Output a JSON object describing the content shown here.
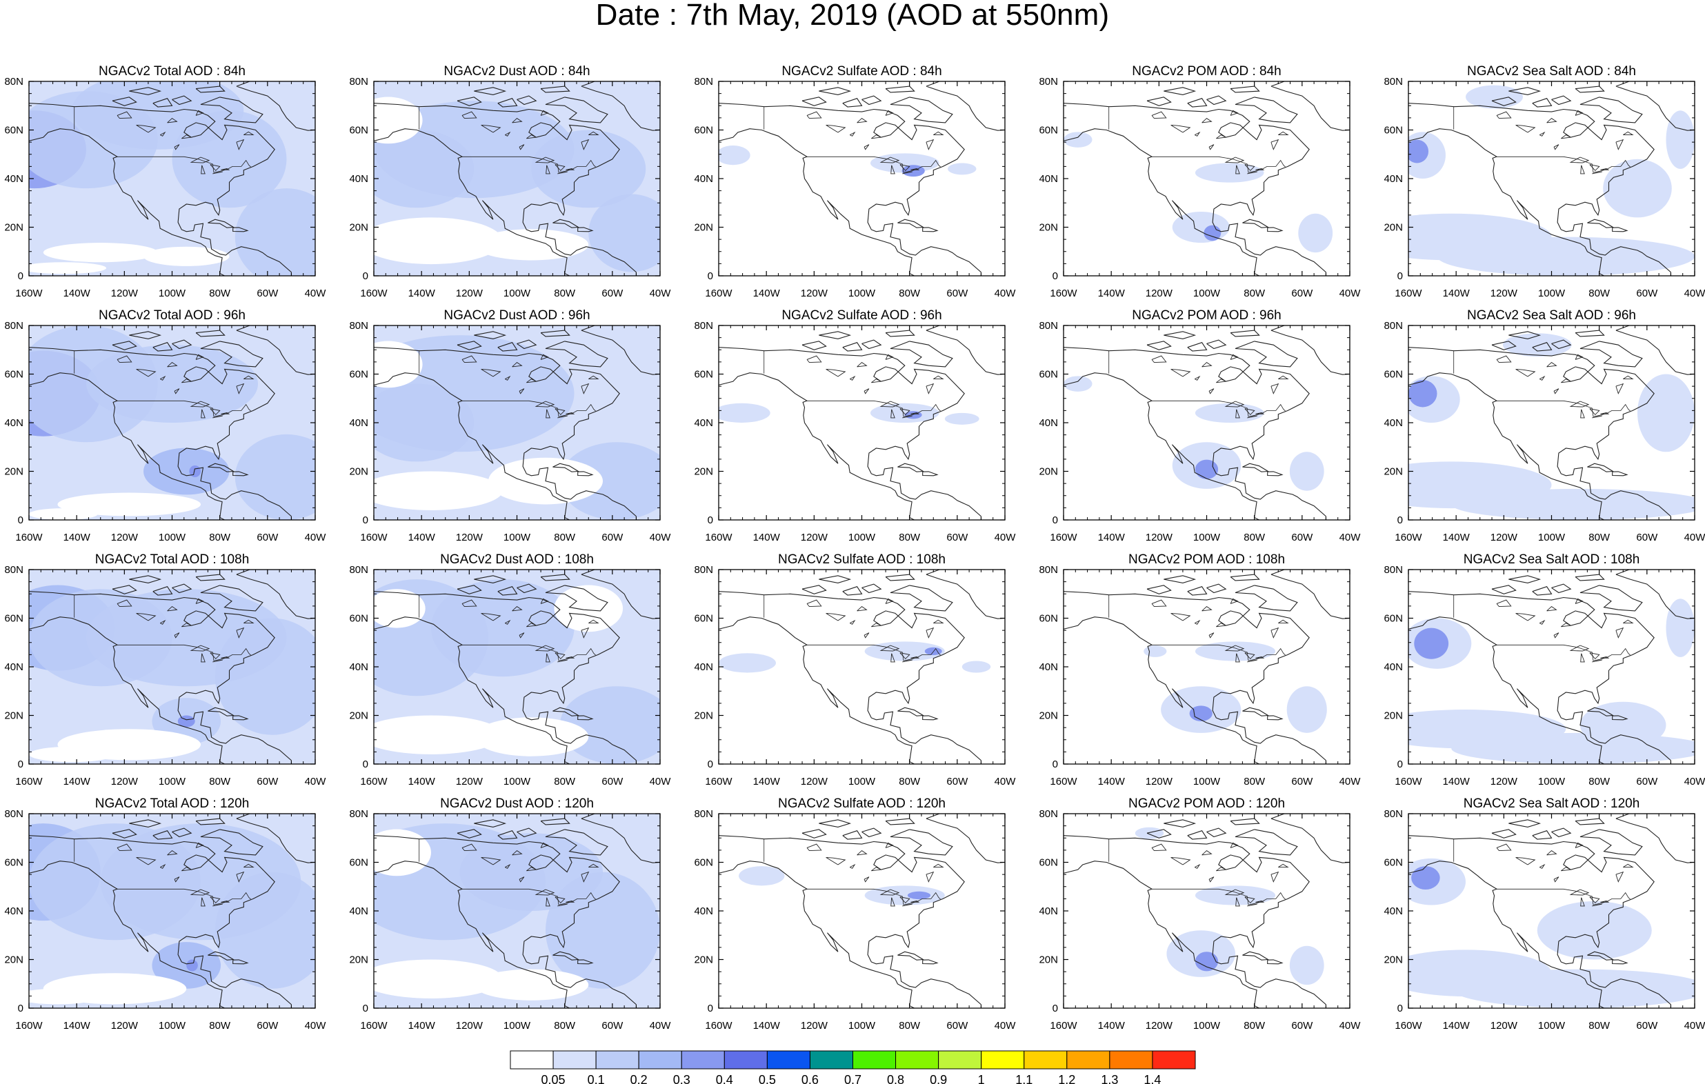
{
  "title": "Date : 7th May, 2019 (AOD at 550nm)",
  "axes": {
    "x_ticks": [
      "160W",
      "140W",
      "120W",
      "100W",
      "80W",
      "60W",
      "40W"
    ],
    "y_ticks": [
      "80N",
      "60N",
      "40N",
      "20N",
      "0"
    ]
  },
  "colors": {
    "coast": "#222222",
    "land_tint": "#ffffff",
    "scale": [
      "#ffffff",
      "#d6e0fa",
      "#bccdf7",
      "#a3b9f5",
      "#8899f0",
      "#5f6ee8",
      "#0a55f0",
      "#00938f",
      "#4df100",
      "#86f500",
      "#c0f53a",
      "#ffff00",
      "#ffd100",
      "#ffa500",
      "#ff7a00",
      "#ff2a14"
    ]
  },
  "colorbar": {
    "labels": [
      "0.05",
      "0.1",
      "0.2",
      "0.3",
      "0.4",
      "0.5",
      "0.6",
      "0.7",
      "0.8",
      "0.9",
      "1",
      "1.1",
      "1.2",
      "1.3",
      "1.4"
    ]
  },
  "panels": [
    [
      {
        "title": "NGACv2 Total AOD : 84h",
        "bg": 1,
        "blobs": [
          [
            0.02,
            0.35,
            0.18,
            0.2,
            4
          ],
          [
            0.9,
            0.8,
            0.18,
            0.25,
            2
          ],
          [
            0.2,
            0.3,
            0.25,
            0.25,
            2
          ],
          [
            0.45,
            0.15,
            0.3,
            0.2,
            2
          ],
          [
            0.7,
            0.4,
            0.2,
            0.25,
            2
          ]
        ],
        "holes": [
          [
            0.25,
            0.88,
            0.2,
            0.05
          ],
          [
            0.55,
            0.9,
            0.15,
            0.05
          ],
          [
            0.12,
            0.96,
            0.15,
            0.03
          ]
        ]
      },
      {
        "title": "NGACv2 Dust AOD : 84h",
        "bg": 1,
        "blobs": [
          [
            0.35,
            0.35,
            0.35,
            0.25,
            2
          ],
          [
            0.75,
            0.45,
            0.2,
            0.2,
            2
          ],
          [
            0.9,
            0.78,
            0.15,
            0.2,
            2
          ],
          [
            0.15,
            0.45,
            0.2,
            0.2,
            2
          ]
        ],
        "holes": [
          [
            0.2,
            0.82,
            0.25,
            0.12
          ],
          [
            0.55,
            0.84,
            0.2,
            0.08
          ],
          [
            0.05,
            0.2,
            0.12,
            0.12
          ]
        ]
      },
      {
        "title": "NGACv2 Sulfate AOD : 84h",
        "bg": 0,
        "blobs": [],
        "pale": [
          [
            0.65,
            0.42,
            0.12,
            0.05
          ],
          [
            0.05,
            0.38,
            0.06,
            0.05
          ],
          [
            0.85,
            0.45,
            0.05,
            0.03
          ]
        ],
        "mid": [
          [
            0.68,
            0.46,
            0.04,
            0.03
          ]
        ]
      },
      {
        "title": "NGACv2 POM AOD : 84h",
        "bg": 0,
        "blobs": [],
        "pale": [
          [
            0.58,
            0.47,
            0.12,
            0.05
          ],
          [
            0.48,
            0.75,
            0.1,
            0.08
          ],
          [
            0.88,
            0.78,
            0.06,
            0.1
          ],
          [
            0.05,
            0.3,
            0.05,
            0.04
          ]
        ],
        "mid": [
          [
            0.52,
            0.78,
            0.03,
            0.04
          ]
        ]
      },
      {
        "title": "NGACv2 Sea Salt AOD : 84h",
        "bg": 0,
        "blobs": [],
        "pale": [
          [
            0.05,
            0.38,
            0.08,
            0.12
          ],
          [
            0.55,
            0.9,
            0.45,
            0.1
          ],
          [
            0.15,
            0.8,
            0.35,
            0.12
          ],
          [
            0.8,
            0.55,
            0.12,
            0.15
          ],
          [
            0.95,
            0.3,
            0.05,
            0.15
          ],
          [
            0.3,
            0.08,
            0.1,
            0.06
          ]
        ],
        "mid": [
          [
            0.03,
            0.36,
            0.04,
            0.06
          ]
        ]
      }
    ],
    [
      {
        "title": "NGACv2 Total AOD : 96h",
        "bg": 1,
        "blobs": [
          [
            0.05,
            0.35,
            0.2,
            0.22,
            4
          ],
          [
            0.2,
            0.3,
            0.25,
            0.3,
            2
          ],
          [
            0.5,
            0.3,
            0.3,
            0.2,
            2
          ],
          [
            0.9,
            0.78,
            0.18,
            0.22,
            2
          ],
          [
            0.55,
            0.75,
            0.15,
            0.12,
            3
          ]
        ],
        "holes": [
          [
            0.35,
            0.92,
            0.25,
            0.06
          ],
          [
            0.12,
            0.97,
            0.12,
            0.03
          ]
        ],
        "mid": [
          [
            0.58,
            0.75,
            0.02,
            0.03
          ]
        ]
      },
      {
        "title": "NGACv2 Dust AOD : 96h",
        "bg": 1,
        "blobs": [
          [
            0.3,
            0.35,
            0.4,
            0.3,
            2
          ],
          [
            0.85,
            0.8,
            0.2,
            0.2,
            2
          ],
          [
            0.15,
            0.5,
            0.2,
            0.2,
            2
          ]
        ],
        "holes": [
          [
            0.2,
            0.85,
            0.25,
            0.1
          ],
          [
            0.6,
            0.8,
            0.2,
            0.12
          ],
          [
            0.05,
            0.2,
            0.12,
            0.12
          ]
        ]
      },
      {
        "title": "NGACv2 Sulfate AOD : 96h",
        "bg": 0,
        "blobs": [],
        "pale": [
          [
            0.65,
            0.45,
            0.12,
            0.05
          ],
          [
            0.08,
            0.45,
            0.1,
            0.05
          ],
          [
            0.85,
            0.48,
            0.06,
            0.03
          ]
        ],
        "mid": [
          [
            0.68,
            0.46,
            0.03,
            0.02
          ]
        ]
      },
      {
        "title": "NGACv2 POM AOD : 96h",
        "bg": 0,
        "blobs": [],
        "pale": [
          [
            0.58,
            0.45,
            0.12,
            0.05
          ],
          [
            0.5,
            0.72,
            0.12,
            0.12
          ],
          [
            0.85,
            0.75,
            0.06,
            0.1
          ],
          [
            0.05,
            0.3,
            0.05,
            0.04
          ]
        ],
        "mid": [
          [
            0.5,
            0.74,
            0.04,
            0.05
          ]
        ]
      },
      {
        "title": "NGACv2 Sea Salt AOD : 96h",
        "bg": 0,
        "blobs": [],
        "pale": [
          [
            0.08,
            0.38,
            0.1,
            0.12
          ],
          [
            0.6,
            0.92,
            0.45,
            0.08
          ],
          [
            0.15,
            0.82,
            0.35,
            0.12
          ],
          [
            0.9,
            0.45,
            0.1,
            0.2
          ],
          [
            0.45,
            0.1,
            0.12,
            0.06
          ]
        ],
        "mid": [
          [
            0.05,
            0.35,
            0.05,
            0.07
          ]
        ]
      }
    ],
    [
      {
        "title": "NGACv2 Total AOD : 108h",
        "bg": 1,
        "blobs": [
          [
            0.1,
            0.3,
            0.2,
            0.22,
            3
          ],
          [
            0.25,
            0.35,
            0.25,
            0.25,
            2
          ],
          [
            0.55,
            0.35,
            0.35,
            0.25,
            2
          ],
          [
            0.85,
            0.55,
            0.2,
            0.3,
            2
          ],
          [
            0.55,
            0.78,
            0.12,
            0.12,
            2
          ]
        ],
        "holes": [
          [
            0.35,
            0.9,
            0.25,
            0.08
          ],
          [
            0.15,
            0.95,
            0.15,
            0.04
          ]
        ],
        "mid": [
          [
            0.55,
            0.78,
            0.03,
            0.03
          ]
        ]
      },
      {
        "title": "NGACv2 Dust AOD : 108h",
        "bg": 1,
        "blobs": [
          [
            0.15,
            0.35,
            0.25,
            0.3,
            2
          ],
          [
            0.45,
            0.3,
            0.25,
            0.25,
            2
          ],
          [
            0.85,
            0.8,
            0.2,
            0.2,
            2
          ]
        ],
        "holes": [
          [
            0.2,
            0.85,
            0.25,
            0.1
          ],
          [
            0.55,
            0.86,
            0.2,
            0.1
          ],
          [
            0.75,
            0.2,
            0.12,
            0.12
          ],
          [
            0.08,
            0.2,
            0.1,
            0.1
          ]
        ]
      },
      {
        "title": "NGACv2 Sulfate AOD : 108h",
        "bg": 0,
        "blobs": [],
        "pale": [
          [
            0.65,
            0.42,
            0.14,
            0.05
          ],
          [
            0.1,
            0.48,
            0.1,
            0.05
          ],
          [
            0.9,
            0.5,
            0.05,
            0.03
          ]
        ],
        "mid": [
          [
            0.75,
            0.42,
            0.03,
            0.02
          ]
        ]
      },
      {
        "title": "NGACv2 POM AOD : 108h",
        "bg": 0,
        "blobs": [],
        "pale": [
          [
            0.6,
            0.42,
            0.14,
            0.05
          ],
          [
            0.48,
            0.72,
            0.14,
            0.12
          ],
          [
            0.85,
            0.72,
            0.07,
            0.12
          ],
          [
            0.32,
            0.42,
            0.04,
            0.03
          ]
        ],
        "mid": [
          [
            0.48,
            0.74,
            0.04,
            0.04
          ]
        ]
      },
      {
        "title": "NGACv2 Sea Salt AOD : 108h",
        "bg": 0,
        "blobs": [],
        "pale": [
          [
            0.1,
            0.38,
            0.12,
            0.13
          ],
          [
            0.6,
            0.92,
            0.45,
            0.08
          ],
          [
            0.2,
            0.82,
            0.35,
            0.1
          ],
          [
            0.75,
            0.8,
            0.15,
            0.12
          ],
          [
            0.95,
            0.3,
            0.05,
            0.15
          ]
        ],
        "mid": [
          [
            0.08,
            0.38,
            0.06,
            0.08
          ]
        ]
      }
    ],
    [
      {
        "title": "NGACv2 Total AOD : 120h",
        "bg": 1,
        "blobs": [
          [
            0.05,
            0.3,
            0.2,
            0.25,
            3
          ],
          [
            0.3,
            0.35,
            0.3,
            0.3,
            2
          ],
          [
            0.6,
            0.35,
            0.35,
            0.3,
            2
          ],
          [
            0.85,
            0.6,
            0.2,
            0.3,
            2
          ],
          [
            0.55,
            0.78,
            0.12,
            0.12,
            3
          ]
        ],
        "holes": [
          [
            0.3,
            0.9,
            0.25,
            0.08
          ],
          [
            0.1,
            0.94,
            0.15,
            0.04
          ]
        ],
        "mid": [
          [
            0.57,
            0.78,
            0.02,
            0.03
          ]
        ]
      },
      {
        "title": "NGACv2 Dust AOD : 120h",
        "bg": 1,
        "blobs": [
          [
            0.25,
            0.35,
            0.35,
            0.3,
            2
          ],
          [
            0.55,
            0.3,
            0.25,
            0.2,
            2
          ],
          [
            0.8,
            0.6,
            0.2,
            0.3,
            2
          ]
        ],
        "holes": [
          [
            0.2,
            0.85,
            0.25,
            0.1
          ],
          [
            0.08,
            0.2,
            0.12,
            0.12
          ],
          [
            0.55,
            0.88,
            0.2,
            0.08
          ]
        ]
      },
      {
        "title": "NGACv2 Sulfate AOD : 120h",
        "bg": 0,
        "blobs": [],
        "pale": [
          [
            0.65,
            0.42,
            0.14,
            0.05
          ],
          [
            0.15,
            0.32,
            0.08,
            0.05
          ]
        ],
        "mid": [
          [
            0.7,
            0.42,
            0.04,
            0.02
          ]
        ]
      },
      {
        "title": "NGACv2 POM AOD : 120h",
        "bg": 0,
        "blobs": [],
        "pale": [
          [
            0.6,
            0.42,
            0.14,
            0.05
          ],
          [
            0.48,
            0.72,
            0.12,
            0.12
          ],
          [
            0.85,
            0.78,
            0.06,
            0.1
          ],
          [
            0.3,
            0.1,
            0.05,
            0.03
          ]
        ],
        "mid": [
          [
            0.5,
            0.76,
            0.04,
            0.05
          ]
        ]
      },
      {
        "title": "NGACv2 Sea Salt  AOD : 120h",
        "bg": 0,
        "blobs": [],
        "pale": [
          [
            0.08,
            0.35,
            0.12,
            0.12
          ],
          [
            0.6,
            0.9,
            0.45,
            0.1
          ],
          [
            0.2,
            0.82,
            0.3,
            0.12
          ],
          [
            0.65,
            0.6,
            0.2,
            0.15
          ]
        ],
        "mid": [
          [
            0.06,
            0.33,
            0.05,
            0.06
          ]
        ]
      }
    ]
  ]
}
